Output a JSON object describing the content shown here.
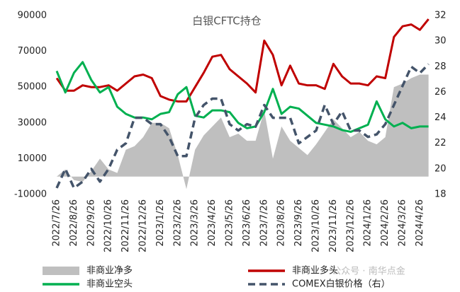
{
  "chart_data": {
    "type": "line",
    "title": "白银CFTC持仓",
    "categories": [
      "2022/7/26",
      null,
      "2022/8/26",
      null,
      "2022/9/26",
      null,
      "2022/10/26",
      null,
      "2022/11/26",
      null,
      "2022/12/26",
      null,
      "2023/1/26",
      null,
      "2023/2/26",
      null,
      "2023/3/26",
      null,
      "2023/4/26",
      null,
      "2023/5/26",
      null,
      "2023/6/26",
      null,
      "2023/7/26",
      null,
      "2023/8/26",
      null,
      "2023/9/26",
      null,
      "2023/10/26",
      null,
      "2023/11/26",
      null,
      "2023/12/26",
      null,
      "2024/1/26",
      null,
      "2024/2/26",
      null,
      "2024/3/26",
      null,
      "2024/4/26",
      null
    ],
    "series": [
      {
        "name": "非商业净多",
        "kind": "area",
        "color": "#bfbfbf",
        "values": [
          0,
          4000,
          -2000,
          -3000,
          3000,
          10000,
          4000,
          2000,
          15000,
          17000,
          22000,
          30000,
          30000,
          27000,
          12000,
          -7000,
          15000,
          23000,
          28000,
          33000,
          22000,
          24000,
          20000,
          20000,
          37000,
          10000,
          28000,
          20000,
          16000,
          12000,
          18000,
          25000,
          32000,
          27000,
          22000,
          25000,
          20000,
          18000,
          22000,
          50000,
          52000,
          55000,
          57000,
          57000
        ]
      },
      {
        "name": "非商业多头",
        "kind": "line",
        "color": "#c00000",
        "values": [
          55000,
          48000,
          48000,
          51000,
          50000,
          50000,
          51000,
          48000,
          52000,
          56000,
          57000,
          55000,
          45000,
          43000,
          42000,
          42000,
          50000,
          58000,
          67000,
          68000,
          60000,
          56000,
          52000,
          47000,
          76000,
          68000,
          51000,
          62000,
          52000,
          51000,
          51000,
          49000,
          63000,
          56000,
          52000,
          52000,
          51000,
          56000,
          55000,
          78000,
          84000,
          85000,
          82000,
          88000
        ]
      },
      {
        "name": "非商业空头",
        "kind": "line",
        "color": "#00b050",
        "values": [
          59000,
          47000,
          58000,
          64000,
          54000,
          47000,
          50000,
          39000,
          35000,
          33000,
          33000,
          32000,
          35000,
          36000,
          46000,
          50000,
          34000,
          33000,
          37000,
          37000,
          36000,
          30000,
          27000,
          28000,
          36000,
          49000,
          35000,
          39000,
          38000,
          34000,
          30000,
          29000,
          28000,
          26000,
          25000,
          27000,
          29000,
          42000,
          32000,
          28000,
          30000,
          27000,
          28000,
          28000
        ]
      },
      {
        "name": "COMEX白银价格（右）",
        "kind": "line",
        "dash": true,
        "axis": "y2",
        "color": "#44546a",
        "values": [
          18.5,
          20,
          18.5,
          19,
          20,
          19,
          20,
          21.5,
          22,
          24,
          24,
          23.5,
          23.5,
          22.5,
          21,
          21,
          24,
          25,
          25.5,
          25.5,
          23.5,
          23,
          23.5,
          23.3,
          25,
          24,
          24,
          24,
          22,
          22.5,
          23,
          25,
          23.5,
          24.5,
          23,
          23,
          22.5,
          22.7,
          23.5,
          25,
          26.5,
          28,
          27.5,
          28.2
        ]
      }
    ],
    "ylim": [
      -10000,
      90000
    ],
    "yticks": [
      -10000,
      10000,
      30000,
      50000,
      70000,
      90000
    ],
    "y2lim": [
      18,
      32
    ],
    "y2ticks": [
      18,
      20,
      22,
      24,
      26,
      28,
      30,
      32
    ],
    "watermark": "公众号 · 南华点金"
  }
}
